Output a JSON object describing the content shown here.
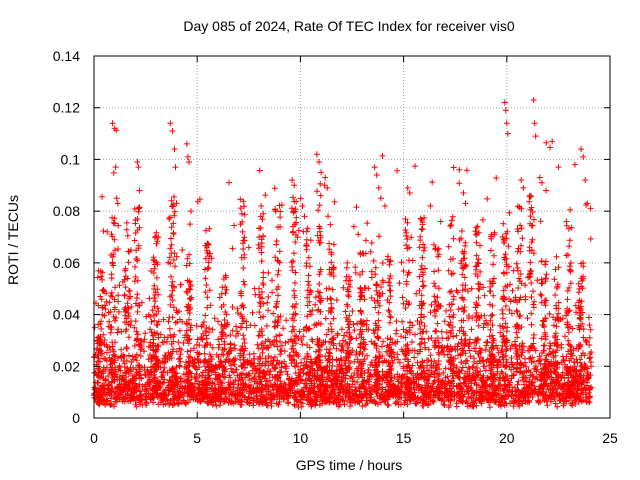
{
  "chart_data": {
    "type": "scatter",
    "title": "Day 085 of 2024, Rate Of TEC Index for receiver vis0",
    "xlabel": "GPS time / hours",
    "ylabel": "ROTI / TECUs",
    "xlim": [
      0,
      25
    ],
    "ylim": [
      0,
      0.14
    ],
    "xticks": [
      0,
      5,
      10,
      15,
      20,
      25
    ],
    "xtick_labels": [
      "0",
      "5",
      "10",
      "15",
      "20",
      "25"
    ],
    "yticks": [
      0,
      0.02,
      0.04,
      0.06,
      0.08,
      0.1,
      0.12,
      0.14
    ],
    "ytick_labels": [
      "0",
      "0.02",
      "0.04",
      "0.06",
      "0.08",
      "0.1",
      "0.12",
      "0.14"
    ],
    "grid": true,
    "marker": "+",
    "color": "#ff0000",
    "series": [
      {
        "name": "ROTI",
        "note": "dense cloud of points for all satellites, 0 to ~24 h; baseline ~0.005-0.03 TECU/s",
        "points": [
          [
            0.9,
            0.114
          ],
          [
            1.0,
            0.112
          ],
          [
            1.05,
            0.097
          ],
          [
            1.1,
            0.085
          ],
          [
            1.15,
            0.083
          ],
          [
            2.1,
            0.099
          ],
          [
            2.15,
            0.097
          ],
          [
            2.2,
            0.088
          ],
          [
            3.7,
            0.114
          ],
          [
            3.8,
            0.111
          ],
          [
            3.9,
            0.104
          ],
          [
            3.95,
            0.097
          ],
          [
            3.75,
            0.084
          ],
          [
            4.5,
            0.106
          ],
          [
            4.55,
            0.101
          ],
          [
            4.6,
            0.099
          ],
          [
            4.7,
            0.08
          ],
          [
            4.65,
            0.075
          ],
          [
            7.1,
            0.075
          ],
          [
            7.2,
            0.072
          ],
          [
            7.5,
            0.066
          ],
          [
            8.1,
            0.082
          ],
          [
            8.2,
            0.079
          ],
          [
            9.6,
            0.092
          ],
          [
            9.7,
            0.09
          ],
          [
            10.1,
            0.082
          ],
          [
            10.2,
            0.078
          ],
          [
            10.8,
            0.102
          ],
          [
            10.9,
            0.099
          ],
          [
            11.0,
            0.095
          ],
          [
            11.2,
            0.093
          ],
          [
            11.3,
            0.089
          ],
          [
            12.8,
            0.071
          ],
          [
            13.6,
            0.097
          ],
          [
            13.7,
            0.094
          ],
          [
            13.8,
            0.089
          ],
          [
            13.9,
            0.085
          ],
          [
            14.1,
            0.082
          ],
          [
            15.2,
            0.089
          ],
          [
            15.3,
            0.087
          ],
          [
            16.3,
            0.082
          ],
          [
            16.8,
            0.076
          ],
          [
            17.7,
            0.096
          ],
          [
            17.9,
            0.087
          ],
          [
            18.0,
            0.083
          ],
          [
            19.4,
            0.071
          ],
          [
            19.9,
            0.122
          ],
          [
            19.95,
            0.119
          ],
          [
            20.0,
            0.114
          ],
          [
            20.05,
            0.11
          ],
          [
            20.7,
            0.092
          ],
          [
            20.8,
            0.089
          ],
          [
            21.3,
            0.123
          ],
          [
            21.35,
            0.114
          ],
          [
            21.4,
            0.109
          ],
          [
            21.6,
            0.093
          ],
          [
            21.7,
            0.091
          ],
          [
            21.9,
            0.088
          ],
          [
            22.2,
            0.107
          ],
          [
            22.5,
            0.097
          ],
          [
            23.3,
            0.098
          ],
          [
            23.6,
            0.104
          ],
          [
            23.7,
            0.101
          ],
          [
            23.8,
            0.092
          ],
          [
            23.9,
            0.083
          ]
        ]
      }
    ]
  }
}
